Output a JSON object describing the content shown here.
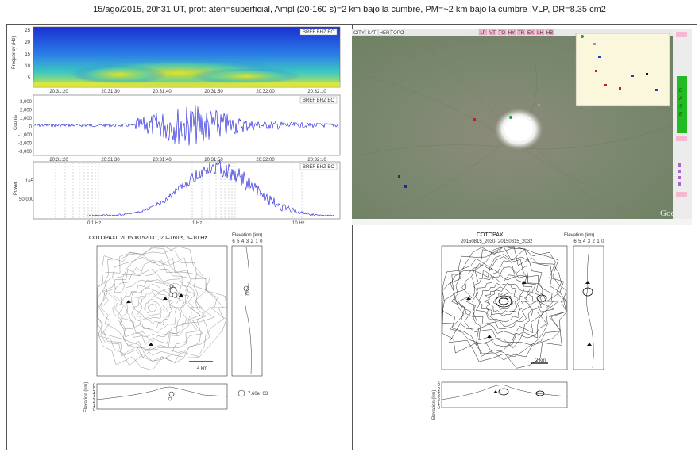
{
  "header": {
    "title": "15/ago/2015, 20h31 UT, prof: aten=superficial, Ampl (20-160 s)=2 km bajo la cumbre, PM=~2 km bajo la cumbre ,VLP, DR=8.35 cm2"
  },
  "spectrogram": {
    "station_tag": "BREF BHZ EC",
    "ylabel": "Frequency (Hz)",
    "yticks": [
      "25",
      "20",
      "15",
      "10",
      "5"
    ],
    "xticks": [
      "20:31:20",
      "20:31:30",
      "20:31:40",
      "20:31:50",
      "20:32:00",
      "20:32:10"
    ]
  },
  "waveform": {
    "station_tag": "BREF BHZ EC",
    "ylabel": "Counts",
    "yticks": [
      "3,000",
      "2,000",
      "1,000",
      "0",
      "-1,000",
      "-2,000",
      "-3,000"
    ],
    "xticks": [
      "20:31:20",
      "20:31:30",
      "20:31:40",
      "20:31:50",
      "20:32:00",
      "20:32:10"
    ]
  },
  "spectrum": {
    "station_tag": "BREF BHZ EC",
    "ylabel": "Power",
    "yticks": [
      "1e5",
      "50,000"
    ],
    "xticks": [
      "0.1 Hz",
      "1 Hz",
      "10 Hz"
    ]
  },
  "map_ui": {
    "tabs": [
      "CITY",
      "SAT",
      "HER",
      "TOPO"
    ],
    "buttons": [
      "LP",
      "VT",
      "TO",
      "HY",
      "TR",
      "EX",
      "LH",
      "HB"
    ],
    "side_label": "BASE",
    "brand": "Goo"
  },
  "loc1": {
    "title": "COTOPAXI, 201508152031, 20–160 s, 5–10 Hz",
    "elev_title": "Elevation (km)",
    "elev_ticks": [
      "6",
      "5",
      "4",
      "3",
      "2",
      "1",
      "0"
    ],
    "scale_label": "4 km",
    "legend_label": "7.60e+03",
    "bottom_ylabel": "Elevation (km)",
    "bottom_ticks": [
      "6",
      "5",
      "4",
      "3",
      "2",
      "1",
      "0"
    ]
  },
  "loc2": {
    "title": "COTOPAXI",
    "subtitle": "20150815_2030- 20150815_2032",
    "elev_title": "Elevation (km)",
    "elev_ticks": [
      "6",
      "5",
      "4",
      "3",
      "2",
      "1",
      "0"
    ],
    "scale_label": "2 km",
    "bottom_ylabel": "Elevation (km)",
    "bottom_ticks": [
      "6",
      "5",
      "4",
      "3",
      "2",
      "1",
      "0"
    ]
  },
  "colors": {
    "trace": "#1a1adc",
    "grid_line": "#555555",
    "pink_button": "#f4b8d0",
    "base_green": "#22bb22"
  }
}
